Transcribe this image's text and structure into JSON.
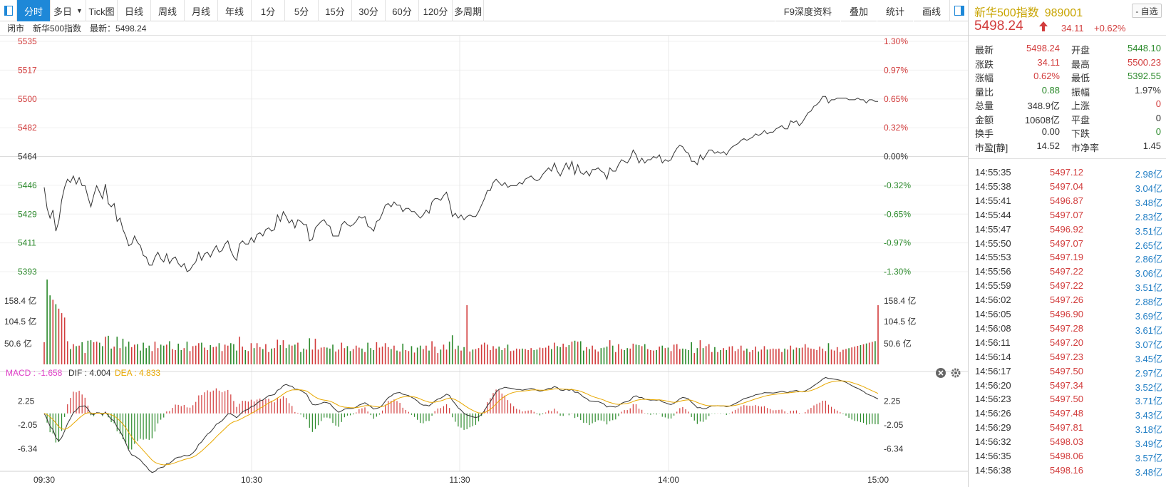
{
  "toolbar": {
    "left_items": [
      "分时",
      "多日",
      "Tick图",
      "日线",
      "周线",
      "月线",
      "年线",
      "1分",
      "5分",
      "15分",
      "30分",
      "60分",
      "120分",
      "多周期"
    ],
    "right_items": [
      "F9深度资料",
      "叠加",
      "统计",
      "画线"
    ]
  },
  "infobar": {
    "status": "闭市",
    "name": "新华500指数",
    "latest": "最新：5498.24"
  },
  "chart_data": {
    "type": "line",
    "price_axis_left": [
      "5535",
      "5517",
      "5500",
      "5482",
      "5464",
      "5446",
      "5429",
      "5411",
      "5393"
    ],
    "price_axis_right": [
      "1.30%",
      "0.97%",
      "0.65%",
      "0.32%",
      "0.00%",
      "-0.32%",
      "-0.65%",
      "-0.97%",
      "-1.30%"
    ],
    "volume_axis": [
      "158.4 亿",
      "104.5 亿",
      "50.6 亿"
    ],
    "macd_axis": [
      "2.25",
      "-2.05",
      "-6.34"
    ],
    "time_axis": [
      "09:30",
      "10:30",
      "11:30",
      "14:00",
      "15:00"
    ],
    "macd_header": {
      "macd": "MACD : -1.658",
      "dif": "DIF : 4.004",
      "dea": "DEA : 4.833"
    },
    "price_range": [
      5393,
      5535
    ],
    "prev_close": 5464.13,
    "price_series": [
      5445,
      5432,
      5426,
      5431,
      5418,
      5424,
      5437,
      5445,
      5450,
      5448,
      5452,
      5447,
      5451,
      5446,
      5446,
      5439,
      5433,
      5440,
      5446,
      5442,
      5438,
      5447,
      5435,
      5433,
      5435,
      5424,
      5426,
      5419,
      5415,
      5409,
      5410,
      5415,
      5411,
      5409,
      5403,
      5402,
      5397,
      5397,
      5402,
      5405,
      5401,
      5399,
      5404,
      5398,
      5401,
      5402,
      5398,
      5396,
      5398,
      5393,
      5394,
      5397,
      5399,
      5405,
      5400,
      5404,
      5405,
      5402,
      5406,
      5409,
      5405,
      5406,
      5410,
      5412,
      5406,
      5402,
      5400,
      5410,
      5412,
      5410,
      5410,
      5414,
      5411,
      5416,
      5417,
      5415,
      5419,
      5420,
      5418,
      5419,
      5428,
      5424,
      5430,
      5427,
      5423,
      5425,
      5420,
      5425,
      5424,
      5422,
      5422,
      5412,
      5413,
      5420,
      5422,
      5424,
      5425,
      5422,
      5421,
      5415,
      5415,
      5415,
      5422,
      5424,
      5422,
      5421,
      5422,
      5424,
      5427,
      5426,
      5427,
      5421,
      5420,
      5418,
      5424,
      5425,
      5429,
      5434,
      5435,
      5433,
      5436,
      5434,
      5434,
      5430,
      5432,
      5432,
      5430,
      5430,
      5428,
      5426,
      5428,
      5431,
      5429,
      5436,
      5438,
      5438,
      5437,
      5440,
      5442,
      5436,
      5427,
      5429,
      5426,
      5428,
      5425,
      5427,
      5428,
      5427,
      5427,
      5430,
      5434,
      5438,
      5443,
      5443,
      5448,
      5450,
      5448,
      5446,
      5448,
      5445,
      5446,
      5446,
      5446,
      5448,
      5447,
      5450,
      5451,
      5452,
      5450,
      5449,
      5450,
      5453,
      5455,
      5457,
      5455,
      5460,
      5455,
      5452,
      5456,
      5460,
      5456,
      5461,
      5453,
      5459,
      5454,
      5453,
      5455,
      5452,
      5456,
      5456,
      5457,
      5455,
      5454,
      5450,
      5457,
      5455,
      5455,
      5459,
      5462,
      5461,
      5460,
      5463,
      5468,
      5465,
      5460,
      5463,
      5460,
      5462,
      5462,
      5464,
      5463,
      5465,
      5460,
      5462,
      5461,
      5462,
      5466,
      5469,
      5471,
      5470,
      5467,
      5466,
      5461,
      5461,
      5459,
      5465,
      5462,
      5465,
      5468,
      5468,
      5466,
      5467,
      5466,
      5467,
      5465,
      5468,
      5470,
      5471,
      5472,
      5474,
      5475,
      5474,
      5475,
      5476,
      5478,
      5477,
      5478,
      5480,
      5478,
      5479,
      5479,
      5481,
      5482,
      5483,
      5481,
      5481,
      5486,
      5485,
      5486,
      5483,
      5485,
      5488,
      5491,
      5492,
      5495,
      5496,
      5498,
      5501,
      5501,
      5497,
      5499,
      5499,
      5500,
      5500,
      5500,
      5500,
      5499,
      5499,
      5499,
      5500,
      5499,
      5499,
      5497,
      5499,
      5499,
      5498,
      5498
    ]
  },
  "quote": {
    "name": "新华500指数",
    "code": "989001",
    "price": "5498.24",
    "change": "34.11",
    "change_pct": "+0.62%",
    "watch_label": "- 自选",
    "rows": [
      {
        "l1": "最新",
        "v1": "5498.24",
        "c1": "#d23c3c",
        "l2": "开盘",
        "v2": "5448.10",
        "c2": "#2c8a2c"
      },
      {
        "l1": "涨跌",
        "v1": "34.11",
        "c1": "#d23c3c",
        "l2": "最高",
        "v2": "5500.23",
        "c2": "#d23c3c"
      },
      {
        "l1": "涨幅",
        "v1": "0.62%",
        "c1": "#d23c3c",
        "l2": "最低",
        "v2": "5392.55",
        "c2": "#2c8a2c"
      },
      {
        "l1": "量比",
        "v1": "0.88",
        "c1": "#2c8a2c",
        "l2": "振幅",
        "v2": "1.97%",
        "c2": "#333333"
      },
      {
        "l1": "总量",
        "v1": "348.9亿",
        "c1": "#333333",
        "l2": "上涨",
        "v2": "0",
        "c2": "#d23c3c"
      },
      {
        "l1": "金额",
        "v1": "10608亿",
        "c1": "#333333",
        "l2": "平盘",
        "v2": "0",
        "c2": "#333333"
      },
      {
        "l1": "换手",
        "v1": "0.00",
        "c1": "#333333",
        "l2": "下跌",
        "v2": "0",
        "c2": "#2c8a2c"
      },
      {
        "l1": "市盈[静]",
        "v1": "14.52",
        "c1": "#333333",
        "l2": "市净率",
        "v2": "1.45",
        "c2": "#333333"
      }
    ]
  },
  "ticks": [
    {
      "time": "14:55:35",
      "price": "5497.12",
      "vol": "2.98亿"
    },
    {
      "time": "14:55:38",
      "price": "5497.04",
      "vol": "3.04亿"
    },
    {
      "time": "14:55:41",
      "price": "5496.87",
      "vol": "3.48亿"
    },
    {
      "time": "14:55:44",
      "price": "5497.07",
      "vol": "2.83亿"
    },
    {
      "time": "14:55:47",
      "price": "5496.92",
      "vol": "3.51亿"
    },
    {
      "time": "14:55:50",
      "price": "5497.07",
      "vol": "2.65亿"
    },
    {
      "time": "14:55:53",
      "price": "5497.19",
      "vol": "2.86亿"
    },
    {
      "time": "14:55:56",
      "price": "5497.22",
      "vol": "3.06亿"
    },
    {
      "time": "14:55:59",
      "price": "5497.22",
      "vol": "3.51亿"
    },
    {
      "time": "14:56:02",
      "price": "5497.26",
      "vol": "2.88亿"
    },
    {
      "time": "14:56:05",
      "price": "5496.90",
      "vol": "3.69亿"
    },
    {
      "time": "14:56:08",
      "price": "5497.28",
      "vol": "3.61亿"
    },
    {
      "time": "14:56:11",
      "price": "5497.20",
      "vol": "3.07亿"
    },
    {
      "time": "14:56:14",
      "price": "5497.23",
      "vol": "3.45亿"
    },
    {
      "time": "14:56:17",
      "price": "5497.50",
      "vol": "2.97亿"
    },
    {
      "time": "14:56:20",
      "price": "5497.34",
      "vol": "3.52亿"
    },
    {
      "time": "14:56:23",
      "price": "5497.50",
      "vol": "3.71亿"
    },
    {
      "time": "14:56:26",
      "price": "5497.48",
      "vol": "3.43亿"
    },
    {
      "time": "14:56:29",
      "price": "5497.81",
      "vol": "3.18亿"
    },
    {
      "time": "14:56:32",
      "price": "5498.03",
      "vol": "3.49亿"
    },
    {
      "time": "14:56:35",
      "price": "5498.06",
      "vol": "3.57亿"
    },
    {
      "time": "14:56:38",
      "price": "5498.16",
      "vol": "3.48亿"
    }
  ],
  "colors": {
    "up": "#d23c3c",
    "down": "#2c8a2c",
    "accent": "#1e88d8",
    "gold": "#c8a400",
    "macd_label": "#e040c8",
    "dea": "#e8a800"
  }
}
